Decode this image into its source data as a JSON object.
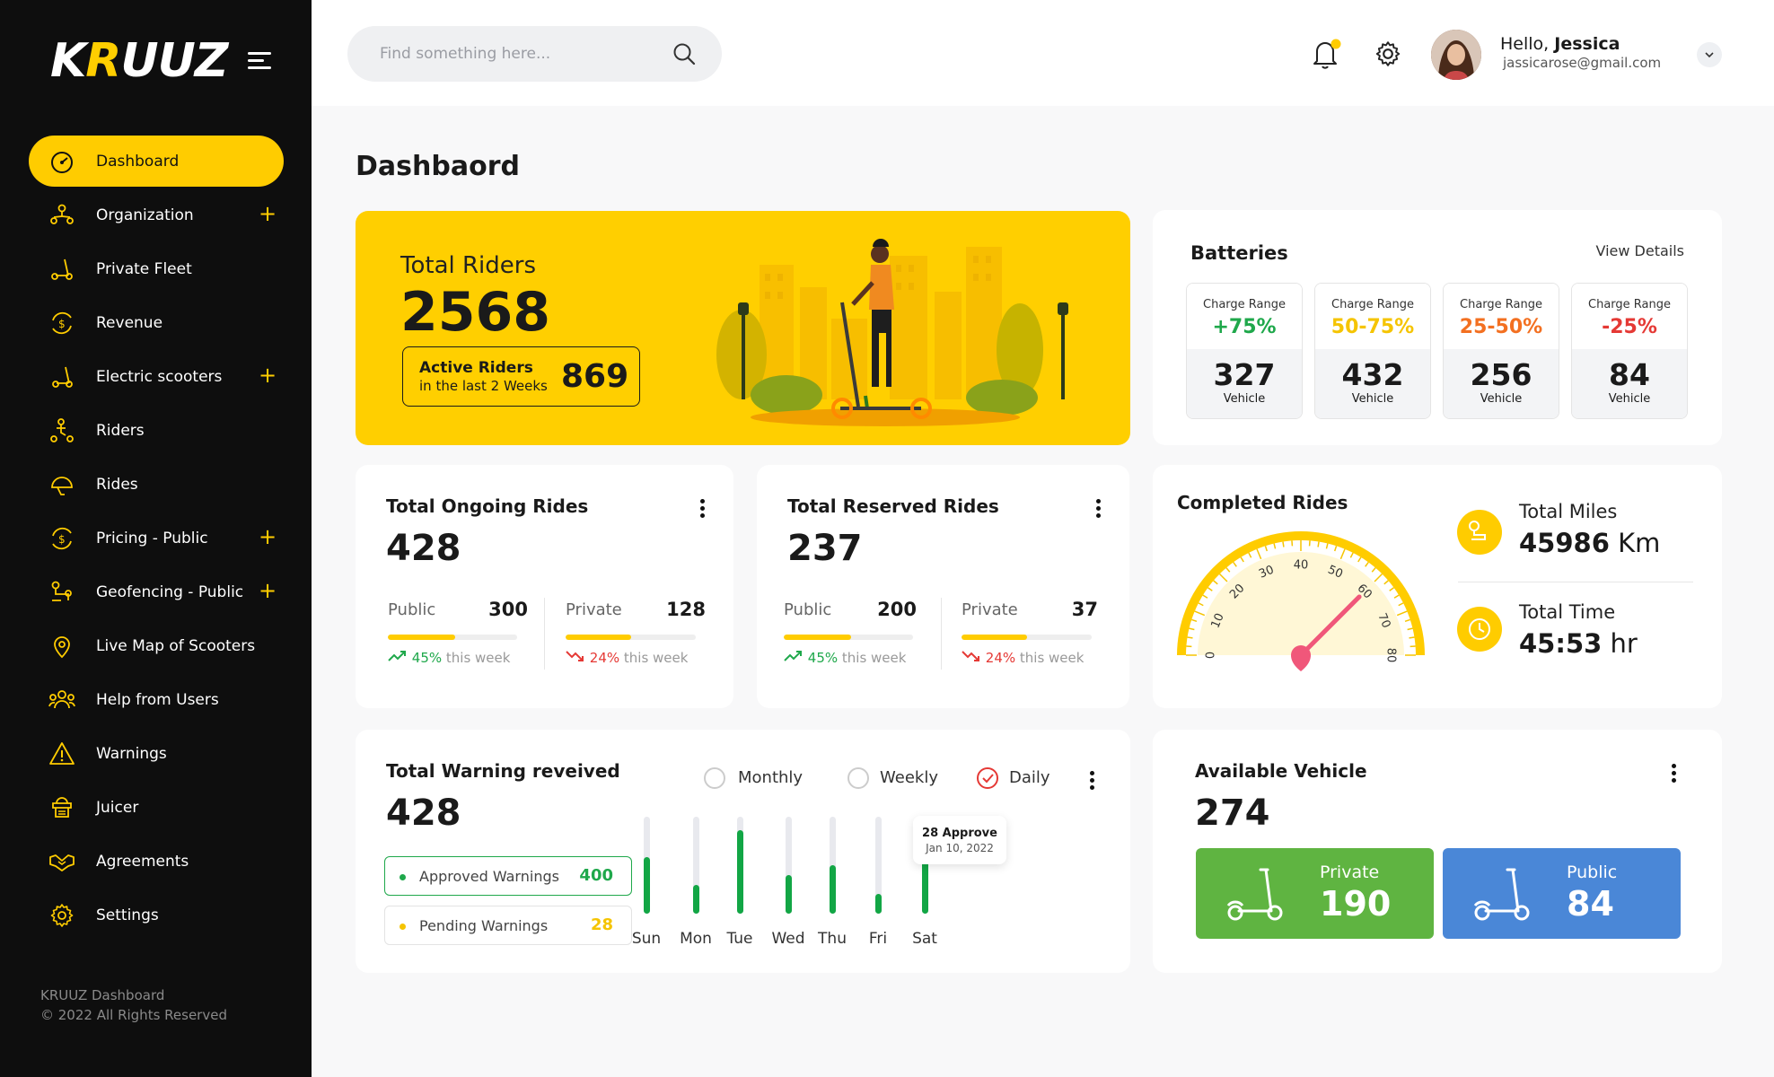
{
  "brand": {
    "logo_a": "K",
    "logo_b": "R",
    "logo_c": "UUZ"
  },
  "sidebar": {
    "items": [
      {
        "label": "Dashboard",
        "icon": "dashboard-gauge-icon",
        "active": true,
        "expandable": false
      },
      {
        "label": "Organization",
        "icon": "organization-icon",
        "expandable": true
      },
      {
        "label": "Private Fleet",
        "icon": "scooter-icon",
        "expandable": false
      },
      {
        "label": "Revenue",
        "icon": "revenue-icon",
        "expandable": false
      },
      {
        "label": "Electric scooters",
        "icon": "electric-scooter-icon",
        "expandable": true
      },
      {
        "label": "Riders",
        "icon": "rider-icon",
        "expandable": false
      },
      {
        "label": "Rides",
        "icon": "helmet-icon",
        "expandable": false
      },
      {
        "label": "Pricing - Public",
        "icon": "pricing-icon",
        "expandable": true
      },
      {
        "label": "Geofencing - Public",
        "icon": "geofence-icon",
        "expandable": true
      },
      {
        "label": "Live Map of Scooters",
        "icon": "map-pin-icon",
        "expandable": false
      },
      {
        "label": "Help from Users",
        "icon": "users-group-icon",
        "expandable": false
      },
      {
        "label": "Warnings",
        "icon": "warning-icon",
        "expandable": false
      },
      {
        "label": "Juicer",
        "icon": "juicer-icon",
        "expandable": false
      },
      {
        "label": "Agreements",
        "icon": "handshake-icon",
        "expandable": false
      },
      {
        "label": "Settings",
        "icon": "gear-icon",
        "expandable": false
      }
    ],
    "plus": "+",
    "footer_line1": "KRUUZ Dashboard",
    "footer_line2": "© 2022 All Rights Reserved"
  },
  "header": {
    "search_placeholder": "Find something here...",
    "greeting": "Hello, ",
    "user_name": "Jessica",
    "user_email": "jassicarose@gmail.com",
    "notification_dot_color": "#ffcc00"
  },
  "page_title": "Dashbaord",
  "total_riders": {
    "label": "Total Riders",
    "value": "2568",
    "active_label": "Active Riders",
    "active_sub": "in the last 2 Weeks",
    "active_value": "869"
  },
  "batteries": {
    "title": "Batteries",
    "link": "View Details",
    "items": [
      {
        "range_label": "Charge Range",
        "range": "+75%",
        "color": "#1fa84b",
        "count": "327",
        "unit": "Vehicle"
      },
      {
        "range_label": "Charge Range",
        "range": "50-75%",
        "color": "#f5c400",
        "count": "432",
        "unit": "Vehicle"
      },
      {
        "range_label": "Charge Range",
        "range": "25-50%",
        "color": "#f37021",
        "count": "256",
        "unit": "Vehicle"
      },
      {
        "range_label": "Charge Range",
        "range": "-25%",
        "color": "#e53935",
        "count": "84",
        "unit": "Vehicle"
      }
    ]
  },
  "ongoing": {
    "title": "Total Ongoing Rides",
    "value": "428",
    "public_label": "Public",
    "public_value": "300",
    "public_fill": 0.52,
    "public_trend": "45%",
    "public_trend_text": " this week",
    "private_label": "Private",
    "private_value": "128",
    "private_fill": 0.5,
    "private_trend": "24%",
    "private_trend_text": " this week"
  },
  "reserved": {
    "title": "Total Reserved Rides",
    "value": "237",
    "public_label": "Public",
    "public_value": "200",
    "public_fill": 0.52,
    "public_trend": "45%",
    "public_trend_text": " this week",
    "private_label": "Private",
    "private_value": "37",
    "private_fill": 0.5,
    "private_trend": "24%",
    "private_trend_text": " this week"
  },
  "completed": {
    "title": "Completed Rides",
    "gauge_ticks": [
      "0",
      "10",
      "20",
      "30",
      "40",
      "50",
      "60",
      "70",
      "80"
    ],
    "gauge_value": 60,
    "miles_label": "Total Miles",
    "miles_value": "45986",
    "miles_unit": " Km",
    "time_label": "Total Time",
    "time_value": "45:53",
    "time_unit": " hr"
  },
  "warnings": {
    "title": "Total Warning reveived",
    "value": "428",
    "approved_label": "Approved Warnings",
    "approved_value": "400",
    "pending_label": "Pending Warnings",
    "pending_value": "28",
    "filters": [
      "Monthly",
      "Weekly",
      "Daily"
    ],
    "selected_filter": "Daily",
    "days": [
      "Sun",
      "Mon",
      "Tue",
      "Wed",
      "Thu",
      "Fri",
      "Sat"
    ],
    "day_levels": [
      0.58,
      0.3,
      0.86,
      0.4,
      0.5,
      0.2,
      0.78
    ],
    "tooltip_line1": "28 Approve",
    "tooltip_line2": "Jan 10, 2022"
  },
  "available": {
    "title": "Available Vehicle",
    "value": "274",
    "private_label": "Private",
    "private_value": "190",
    "private_color": "#5fb441",
    "public_label": "Public",
    "public_value": "84",
    "public_color": "#4a87d7"
  }
}
